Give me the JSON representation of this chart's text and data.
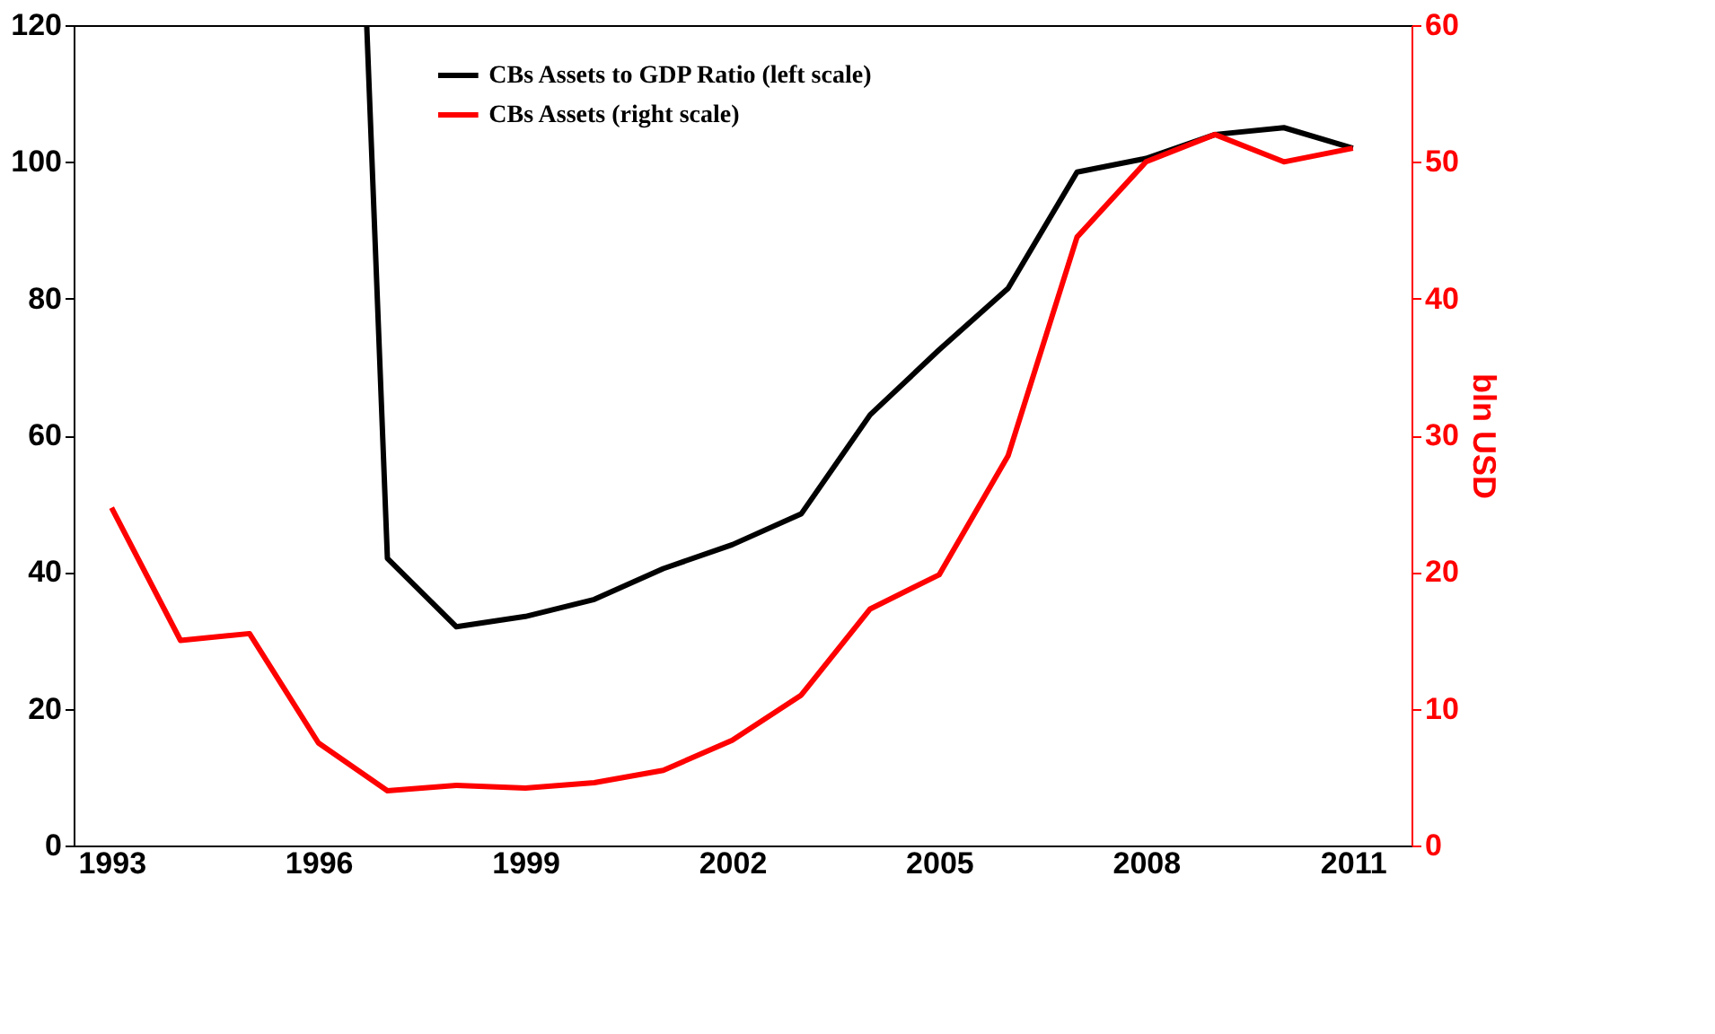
{
  "chart_data": {
    "type": "line",
    "y2label": "bln USD",
    "series": [
      {
        "name": "CBs Assets to GDP Ratio (left scale)",
        "color": "#000000",
        "x": [
          1996.7,
          1997,
          1998,
          1999,
          2000,
          2001,
          2002,
          2003,
          2004,
          2005,
          2006,
          2007,
          2008,
          2009,
          2010,
          2011
        ],
        "values": [
          120,
          42,
          32,
          33.5,
          36,
          40.5,
          44,
          48.5,
          63,
          72.5,
          81.5,
          98.5,
          100.5,
          104,
          105,
          102
        ]
      },
      {
        "name": "CBs Assets (right scale)",
        "color": "#ff0000",
        "axis": "y2",
        "x": [
          1993,
          1994,
          1995,
          1996,
          1997,
          1998,
          1999,
          2000,
          2001,
          2002,
          2003,
          2004,
          2005,
          2006,
          2007,
          2008,
          2009,
          2010,
          2011
        ],
        "values": [
          24.7,
          15,
          15.5,
          7.5,
          4,
          4.4,
          4.2,
          4.6,
          5.5,
          7.7,
          11,
          17.3,
          19.8,
          28.5,
          44.5,
          50,
          52,
          50,
          51
        ]
      }
    ],
    "xlim": [
      1992.45,
      2011.85
    ],
    "xticks": [
      1993,
      1996,
      1999,
      2002,
      2005,
      2008,
      2011
    ],
    "ylim": [
      0,
      120
    ],
    "yticks": [
      0,
      20,
      40,
      60,
      80,
      100,
      120
    ],
    "y2lim": [
      0,
      60
    ],
    "y2ticks": [
      0,
      10,
      20,
      30,
      40,
      50,
      60
    ],
    "grid": false,
    "legend": "top",
    "marker": "none",
    "line_style": "solid"
  }
}
